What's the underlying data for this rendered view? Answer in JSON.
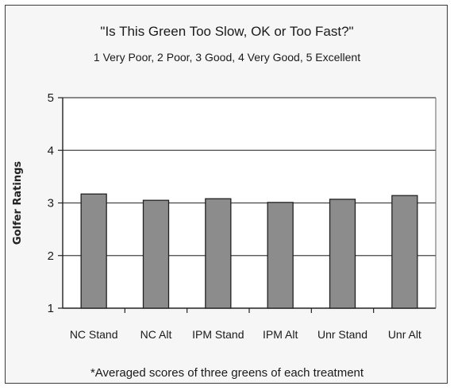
{
  "chart_data": {
    "type": "bar",
    "title": "\"Is This Green Too Slow, OK or Too Fast?\"",
    "subtitle": "1 Very Poor, 2 Poor, 3 Good, 4 Very Good, 5 Excellent",
    "ylabel": "Golfer Ratings",
    "xlabel": "",
    "categories": [
      "NC Stand",
      "NC Alt",
      "IPM Stand",
      "IPM Alt",
      "Unr Stand",
      "Unr Alt"
    ],
    "values": [
      3.17,
      3.05,
      3.08,
      3.01,
      3.07,
      3.14
    ],
    "ylim": [
      1,
      5
    ],
    "yticks": [
      "1",
      "2",
      "3",
      "4",
      "5"
    ],
    "grid": true,
    "legend": "none",
    "footnote": "*Averaged scores of three greens of each treatment",
    "colors": {
      "bar": "#8c8c8c",
      "bar_edge": "#222222",
      "grid": "#444444",
      "plot_bg": "#ffffff"
    }
  }
}
